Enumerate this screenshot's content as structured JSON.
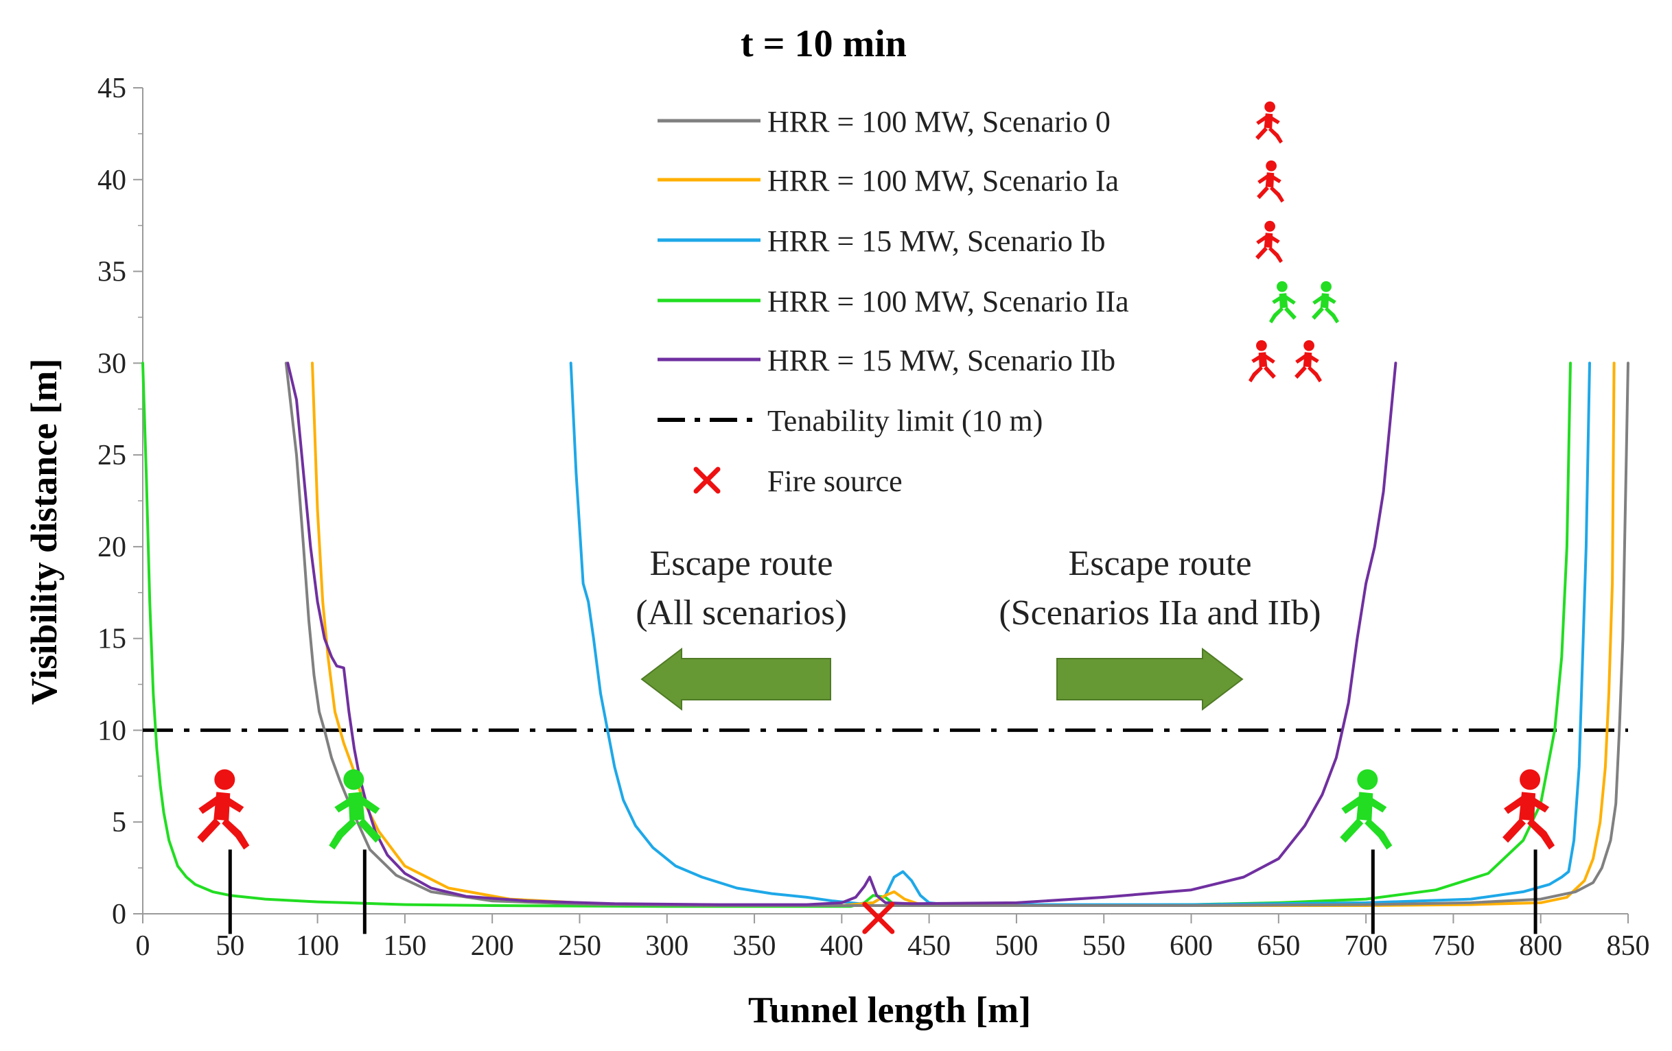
{
  "chart_data": {
    "type": "line",
    "title": "t = 10 min",
    "xlabel": "Tunnel length [m]",
    "ylabel": "Visibility distance [m]",
    "xlim": [
      0,
      850
    ],
    "ylim": [
      0,
      45
    ],
    "xticks": [
      0,
      50,
      100,
      150,
      200,
      250,
      300,
      350,
      400,
      450,
      500,
      550,
      600,
      650,
      700,
      750,
      800,
      850
    ],
    "yticks": [
      0,
      5,
      10,
      15,
      20,
      25,
      30,
      35,
      40,
      45
    ],
    "grid": false,
    "legend_position": "top-center",
    "series": [
      {
        "name": "HRR = 100 MW, Scenario 0",
        "color": "#808080",
        "icon": "runner-red-single",
        "x": [
          82,
          88,
          92,
          95,
          98,
          101,
          104,
          108,
          113,
          120,
          130,
          145,
          165,
          200,
          260,
          330,
          400,
          420,
          500,
          600,
          700,
          760,
          800,
          820,
          830,
          835,
          840,
          843,
          845,
          847,
          848,
          849,
          850
        ],
        "y": [
          30,
          25,
          20,
          16,
          13,
          11,
          10,
          8.5,
          7.2,
          5.6,
          3.5,
          2.1,
          1.2,
          0.7,
          0.5,
          0.45,
          0.45,
          0.45,
          0.45,
          0.45,
          0.5,
          0.6,
          0.8,
          1.2,
          1.7,
          2.5,
          4,
          6,
          10,
          15,
          20,
          25,
          30
        ]
      },
      {
        "name": "HRR = 100 MW, Scenario Ia",
        "color": "#FFB000",
        "icon": "runner-red-single",
        "x": [
          97,
          100,
          103,
          106,
          110,
          115,
          120,
          126,
          135,
          150,
          175,
          210,
          260,
          330,
          400,
          418,
          425,
          430,
          436,
          445,
          500,
          600,
          700,
          760,
          800,
          815,
          825,
          830,
          834,
          837,
          839,
          841,
          842
        ],
        "y": [
          30,
          22,
          17,
          14,
          11,
          9.3,
          8,
          6.2,
          4.5,
          2.6,
          1.4,
          0.8,
          0.55,
          0.45,
          0.45,
          0.6,
          1.0,
          1.2,
          0.8,
          0.5,
          0.45,
          0.45,
          0.45,
          0.5,
          0.6,
          0.9,
          1.8,
          3,
          5,
          8,
          12,
          18,
          30
        ]
      },
      {
        "name": "HRR = 15 MW, Scenario Ib",
        "color": "#1EA8E8",
        "icon": "runner-red-single",
        "x": [
          245,
          248,
          252,
          255,
          258,
          262,
          266,
          270,
          275,
          282,
          292,
          305,
          320,
          340,
          360,
          380,
          395,
          405,
          410,
          418,
          425,
          430,
          435,
          440,
          445,
          450,
          460,
          500,
          600,
          700,
          760,
          790,
          805,
          812,
          816,
          819,
          822,
          824,
          826,
          828
        ],
        "y": [
          30,
          24,
          18,
          17,
          15,
          12,
          10,
          8,
          6.2,
          4.8,
          3.6,
          2.6,
          2.0,
          1.4,
          1.1,
          0.9,
          0.7,
          0.6,
          0.55,
          0.6,
          1.0,
          2.0,
          2.3,
          1.8,
          1.0,
          0.6,
          0.5,
          0.5,
          0.5,
          0.6,
          0.8,
          1.2,
          1.6,
          2.0,
          2.3,
          4,
          8,
          14,
          20,
          30
        ]
      },
      {
        "name": "HRR = 100 MW, Scenario IIa",
        "color": "#22DD22",
        "icon": "runner-green-pair",
        "x": [
          0,
          2,
          4,
          6,
          8,
          10,
          12,
          15,
          20,
          25,
          30,
          40,
          50,
          70,
          100,
          150,
          200,
          300,
          405,
          413,
          418,
          425,
          430,
          440,
          500,
          600,
          650,
          700,
          740,
          770,
          790,
          800,
          808,
          812,
          815,
          817
        ],
        "y": [
          30,
          24,
          17,
          12,
          9,
          7,
          5.5,
          4,
          2.6,
          2,
          1.6,
          1.2,
          1.0,
          0.8,
          0.65,
          0.5,
          0.45,
          0.4,
          0.4,
          0.6,
          1.0,
          0.9,
          0.5,
          0.45,
          0.45,
          0.5,
          0.6,
          0.8,
          1.3,
          2.2,
          4,
          6,
          10,
          14,
          20,
          30
        ]
      },
      {
        "name": "HRR = 15 MW, Scenario IIb",
        "color": "#7030A0",
        "icon": "runner-red-pair",
        "x": [
          83,
          88,
          92,
          96,
          100,
          104,
          108,
          111,
          115,
          118,
          121,
          124,
          128,
          133,
          140,
          150,
          165,
          185,
          220,
          270,
          330,
          380,
          400,
          408,
          413,
          416,
          420,
          425,
          440,
          500,
          550,
          600,
          630,
          650,
          665,
          675,
          683,
          690,
          695,
          700,
          705,
          710,
          714,
          717
        ],
        "y": [
          30,
          28,
          24,
          20,
          17,
          15,
          14,
          13.5,
          13.4,
          11,
          9,
          7.5,
          6,
          4.5,
          3.2,
          2.2,
          1.4,
          0.95,
          0.7,
          0.55,
          0.5,
          0.5,
          0.6,
          0.9,
          1.5,
          2.0,
          1.0,
          0.6,
          0.55,
          0.6,
          0.9,
          1.3,
          2.0,
          3,
          4.8,
          6.5,
          8.5,
          11.5,
          15,
          18,
          20,
          23,
          27,
          30
        ]
      },
      {
        "name": "Tenability limit (10 m)",
        "color": "#000000",
        "style": "dash-dot",
        "x": [
          0,
          850
        ],
        "y": [
          10,
          10
        ]
      }
    ],
    "markers": [
      {
        "name": "Fire source",
        "symbol": "x",
        "color": "#EE1111",
        "x": 421,
        "y": 0
      }
    ],
    "annotations": {
      "escape_left": {
        "line1": "Escape route",
        "line2": "(All scenarios)",
        "direction": "left"
      },
      "escape_right": {
        "line1": "Escape route",
        "line2": "(Scenarios IIa and IIb)",
        "direction": "right"
      }
    },
    "exit_marks": [
      {
        "x": 50,
        "runner": "red",
        "facing": "right"
      },
      {
        "x": 127,
        "runner": "green",
        "facing": "left"
      },
      {
        "x": 704,
        "runner": "green",
        "facing": "right"
      },
      {
        "x": 797,
        "runner": "red",
        "facing": "right"
      }
    ],
    "colors": {
      "runner_red": "#EE1111",
      "runner_green": "#22DD22",
      "arrow_fill": "#669933",
      "arrow_edge": "#4F7A25"
    }
  }
}
